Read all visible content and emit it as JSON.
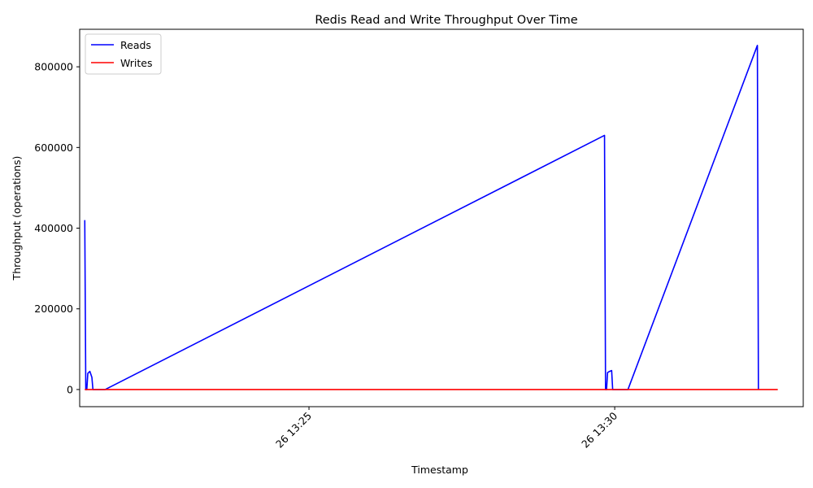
{
  "chart_data": {
    "type": "line",
    "title": "Redis Read and Write Throughput Over Time",
    "xlabel": "Timestamp",
    "ylabel": "Throughput (operations)",
    "ylim": [
      -42500,
      893000
    ],
    "xlim": [
      "13:21:15",
      "13:33:05"
    ],
    "x_ticks": [
      {
        "time": "13:25:00",
        "label": "26 13:25"
      },
      {
        "time": "13:30:00",
        "label": "26 13:30"
      }
    ],
    "y_ticks": [
      0,
      200000,
      400000,
      600000,
      800000
    ],
    "legend_position": "top-left",
    "grid": false,
    "series": [
      {
        "name": "Reads",
        "color": "#0000ff",
        "points": [
          [
            "13:21:20",
            420000
          ],
          [
            "13:21:21",
            0
          ],
          [
            "13:21:22",
            0
          ],
          [
            "13:21:23",
            40000
          ],
          [
            "13:21:25",
            45000
          ],
          [
            "13:21:27",
            30000
          ],
          [
            "13:21:28",
            0
          ],
          [
            "13:21:40",
            0
          ],
          [
            "13:29:50",
            630000
          ],
          [
            "13:29:51",
            0
          ],
          [
            "13:29:52",
            0
          ],
          [
            "13:29:53",
            42000
          ],
          [
            "13:29:55",
            45000
          ],
          [
            "13:29:57",
            47000
          ],
          [
            "13:29:58",
            0
          ],
          [
            "13:30:13",
            0
          ],
          [
            "13:32:20",
            853000
          ],
          [
            "13:32:21",
            0
          ]
        ]
      },
      {
        "name": "Writes",
        "color": "#ff0000",
        "points": [
          [
            "13:21:20",
            0
          ],
          [
            "13:32:40",
            0
          ]
        ]
      }
    ]
  }
}
